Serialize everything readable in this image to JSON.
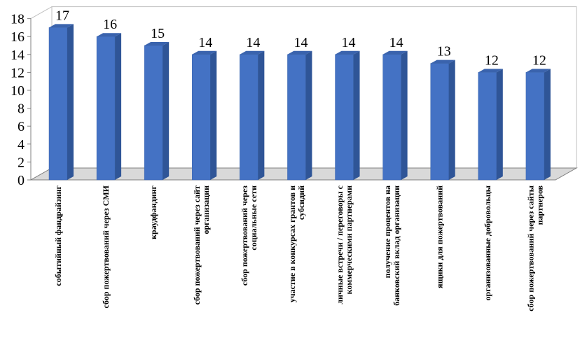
{
  "chart_data": {
    "type": "bar",
    "title": "",
    "xlabel": "",
    "ylabel": "",
    "categories": [
      [
        "событийный фандрайзинг"
      ],
      [
        "сбор пожертвований через СМИ"
      ],
      [
        "краудфандинг"
      ],
      [
        "сбор пожертвований через сайт",
        "организации"
      ],
      [
        "сбор пожертвований через",
        "социальные сети"
      ],
      [
        "участие в конкурсах грантов и",
        "субсидий"
      ],
      [
        "личные встречи / переговоры с",
        "коммерческими партнерами"
      ],
      [
        "получение процентов на",
        "банковский вклад организации"
      ],
      [
        "ящики для пожертвований"
      ],
      [
        "организованные добровольцы"
      ],
      [
        "сбор пожертвований через сайты",
        "партнеров"
      ]
    ],
    "values": [
      17,
      16,
      15,
      14,
      14,
      14,
      14,
      14,
      13,
      12,
      12
    ],
    "data_labels": [
      "17",
      "16",
      "15",
      "14",
      "14",
      "14",
      "14",
      "14",
      "13",
      "12",
      "12"
    ],
    "ylim": [
      0,
      18
    ],
    "yticks": [
      "0",
      "2",
      "4",
      "6",
      "8",
      "10",
      "12",
      "14",
      "16",
      "18"
    ],
    "grid": false,
    "legend": "none",
    "colors": {
      "bar_front": "#4472C4",
      "bar_side": "#2F5597",
      "bar_top": "#3A63AD",
      "floor": "#D9D9D9",
      "axis": "#808080"
    }
  }
}
